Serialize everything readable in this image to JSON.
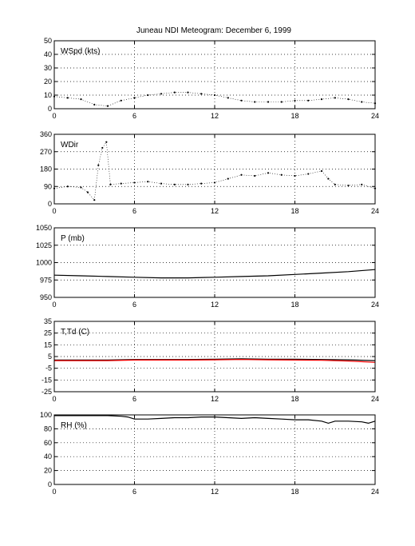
{
  "title": "Juneau NDI Meteogram:  December  6, 1999",
  "chart_data": [
    {
      "type": "scatter",
      "label": "WSpd (kts)",
      "xlim": [
        0,
        24
      ],
      "ylim": [
        0,
        50
      ],
      "xticks": [
        0,
        6,
        12,
        18,
        24
      ],
      "yticks": [
        0,
        10,
        20,
        30,
        40,
        50
      ],
      "grid": true,
      "series": [
        {
          "color": "#000000",
          "x": [
            0,
            1,
            2,
            3,
            4,
            5,
            6,
            7,
            8,
            9,
            10,
            11,
            12,
            13,
            14,
            15,
            16,
            17,
            18,
            19,
            20,
            21,
            22,
            23,
            24
          ],
          "y": [
            9,
            8,
            7,
            3,
            2,
            6,
            8,
            10,
            11,
            12,
            12,
            11,
            10,
            8,
            6,
            5,
            5,
            5,
            6,
            6,
            7,
            8,
            7,
            5,
            4
          ]
        }
      ]
    },
    {
      "type": "scatter",
      "label": "WDir",
      "xlim": [
        0,
        24
      ],
      "ylim": [
        0,
        360
      ],
      "xticks": [
        0,
        6,
        12,
        18,
        24
      ],
      "yticks": [
        0,
        90,
        180,
        270,
        360
      ],
      "grid": true,
      "series": [
        {
          "color": "#000000",
          "x": [
            0,
            1,
            2,
            2.5,
            3,
            3.3,
            3.6,
            3.9,
            4.2,
            5,
            6,
            7,
            8,
            9,
            10,
            11,
            12,
            13,
            14,
            15,
            16,
            17,
            18,
            19,
            20,
            20.5,
            21,
            22,
            23,
            24
          ],
          "y": [
            80,
            90,
            85,
            60,
            20,
            200,
            290,
            320,
            100,
            105,
            110,
            115,
            105,
            100,
            100,
            105,
            110,
            130,
            150,
            145,
            160,
            150,
            145,
            155,
            170,
            130,
            100,
            95,
            100,
            80
          ]
        }
      ]
    },
    {
      "type": "line",
      "label": "P (mb)",
      "xlim": [
        0,
        24
      ],
      "ylim": [
        950,
        1050
      ],
      "xticks": [
        0,
        6,
        12,
        18,
        24
      ],
      "yticks": [
        950,
        975,
        1000,
        1025,
        1050
      ],
      "grid": true,
      "series": [
        {
          "color": "#000000",
          "x": [
            0,
            2,
            4,
            6,
            8,
            10,
            12,
            14,
            16,
            18,
            20,
            22,
            24
          ],
          "y": [
            982,
            981,
            980,
            979,
            978,
            978,
            979,
            980,
            981,
            983,
            985,
            987,
            990
          ]
        }
      ]
    },
    {
      "type": "line",
      "label": "T,Td (C)",
      "xlim": [
        0,
        24
      ],
      "ylim": [
        -25,
        35
      ],
      "xticks": [
        0,
        6,
        12,
        18,
        24
      ],
      "yticks": [
        -25,
        -15,
        -5,
        5,
        15,
        25,
        35
      ],
      "grid": true,
      "series": [
        {
          "color": "#000000",
          "x": [
            0,
            2,
            4,
            6,
            8,
            10,
            12,
            14,
            16,
            18,
            20,
            22,
            24
          ],
          "y": [
            2,
            2,
            2,
            2.5,
            2.5,
            2.5,
            2.7,
            3,
            2.7,
            2.7,
            2.5,
            2.2,
            1.5
          ]
        },
        {
          "color": "#ff0000",
          "x": [
            0,
            2,
            4,
            6,
            8,
            10,
            12,
            14,
            16,
            18,
            20,
            22,
            24
          ],
          "y": [
            1.5,
            1.5,
            1.5,
            2,
            2,
            2,
            2.2,
            2.5,
            2.2,
            2,
            1.8,
            1.2,
            0
          ]
        }
      ]
    },
    {
      "type": "line",
      "label": "RH (%)",
      "xlim": [
        0,
        24
      ],
      "ylim": [
        0,
        100
      ],
      "xticks": [
        0,
        6,
        12,
        18,
        24
      ],
      "yticks": [
        0,
        20,
        40,
        60,
        80,
        100
      ],
      "grid": true,
      "series": [
        {
          "color": "#000000",
          "x": [
            0,
            1,
            2,
            3,
            4,
            5,
            5.5,
            6,
            7,
            8,
            9,
            10,
            11,
            12,
            13,
            14,
            15,
            16,
            17,
            18,
            19,
            20,
            20.5,
            21,
            22,
            23,
            23.5,
            24
          ],
          "y": [
            99,
            99,
            99,
            99,
            99,
            98,
            97,
            94,
            94,
            95,
            96,
            96,
            97,
            97,
            96,
            95,
            96,
            95,
            94,
            93,
            93,
            91,
            88,
            91,
            91,
            90,
            88,
            91
          ]
        }
      ]
    }
  ]
}
